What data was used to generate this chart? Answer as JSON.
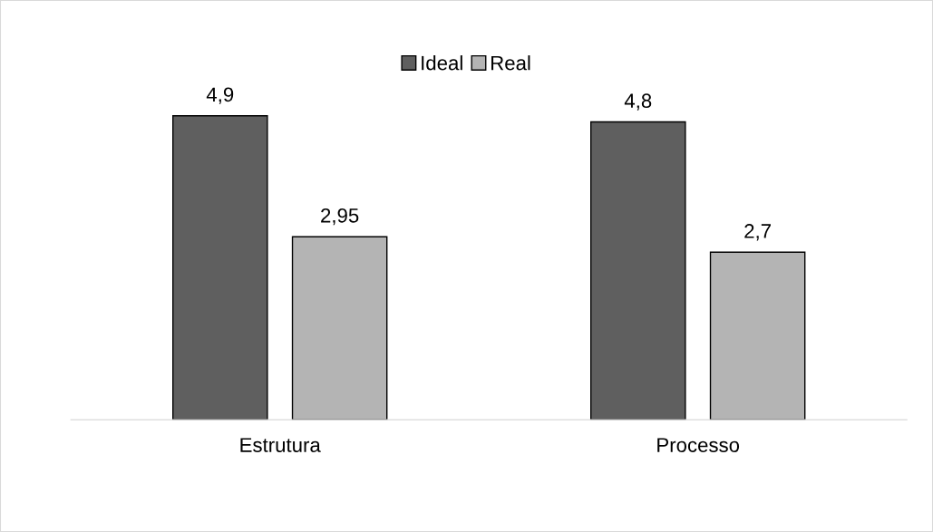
{
  "chart_data": {
    "type": "bar",
    "categories": [
      "Estrutura",
      "Processo"
    ],
    "series": [
      {
        "name": "Ideal",
        "color": "#5f5f5f",
        "values": [
          4.9,
          4.8
        ],
        "value_labels": [
          "4,9",
          "4,8"
        ]
      },
      {
        "name": "Real",
        "color": "#b4b4b4",
        "values": [
          2.95,
          2.7
        ],
        "value_labels": [
          "2,95",
          "2,7"
        ]
      }
    ],
    "legend": "top",
    "grid": false
  }
}
